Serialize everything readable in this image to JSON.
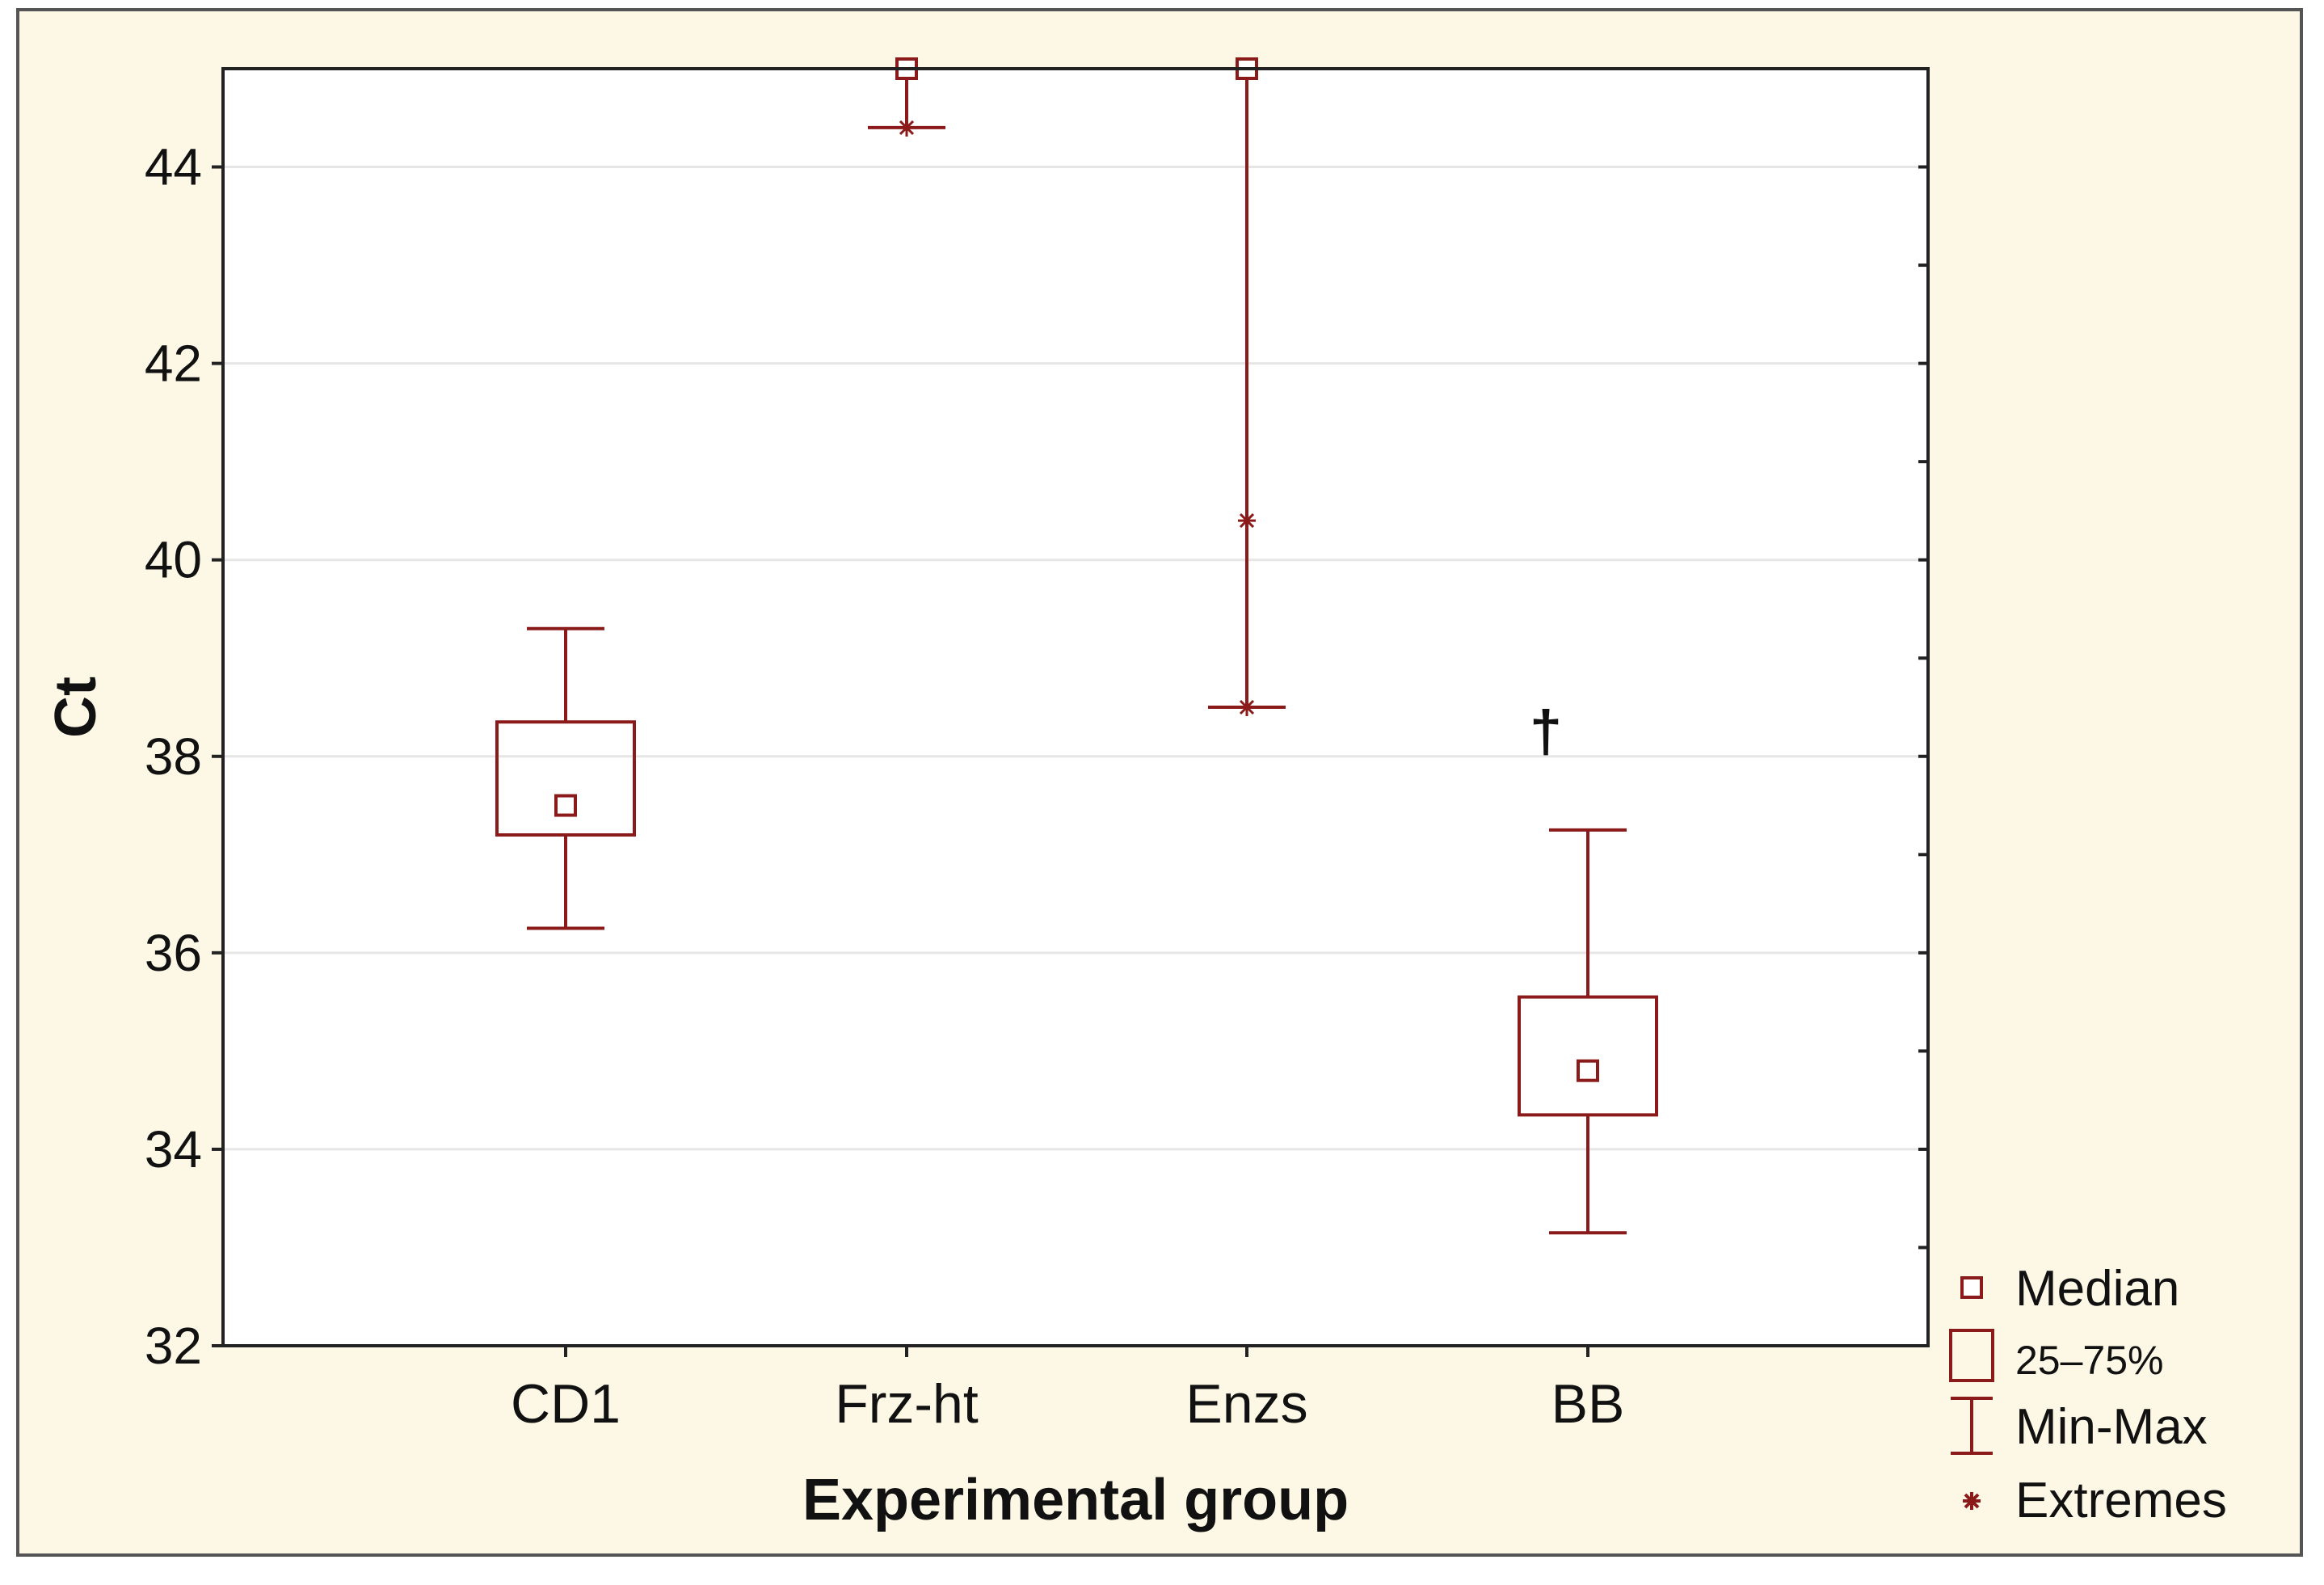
{
  "chart_data": {
    "type": "boxplot",
    "title": "",
    "xlabel": "Experimental group",
    "ylabel": "Ct",
    "ylim": [
      32,
      45
    ],
    "yticks": [
      32,
      34,
      36,
      38,
      40,
      42,
      44
    ],
    "grid": true,
    "categories": [
      "CD1",
      "Frz-ht",
      "Enzs",
      "BB"
    ],
    "series": [
      {
        "name": "CD1",
        "median": 37.5,
        "q1": 37.2,
        "q3": 38.35,
        "min": 36.25,
        "max": 39.3,
        "extremes": []
      },
      {
        "name": "Frz-ht",
        "median": 45,
        "q1": 45,
        "q3": 45,
        "min": 44.4,
        "max": 45,
        "extremes": [
          44.4
        ]
      },
      {
        "name": "Enzs",
        "median": 45,
        "q1": 45,
        "q3": 45,
        "min": 38.5,
        "max": 45,
        "extremes": [
          40.4,
          38.5
        ]
      },
      {
        "name": "BB",
        "median": 34.8,
        "q1": 34.35,
        "q3": 35.55,
        "min": 33.15,
        "max": 37.25,
        "extremes": []
      }
    ],
    "annotations": [
      {
        "category": "BB",
        "text": "†",
        "y": 38.3
      }
    ],
    "legend": {
      "position": "bottom-right",
      "items": [
        {
          "symbol": "median",
          "label": "Median"
        },
        {
          "symbol": "box",
          "label": "25–75%"
        },
        {
          "symbol": "whisker",
          "label": "Min-Max"
        },
        {
          "symbol": "extreme",
          "label": "Extremes"
        }
      ]
    },
    "colors": {
      "series": "#8b1a1a",
      "grid": "#e6e6e6",
      "axis": "#222222"
    }
  }
}
